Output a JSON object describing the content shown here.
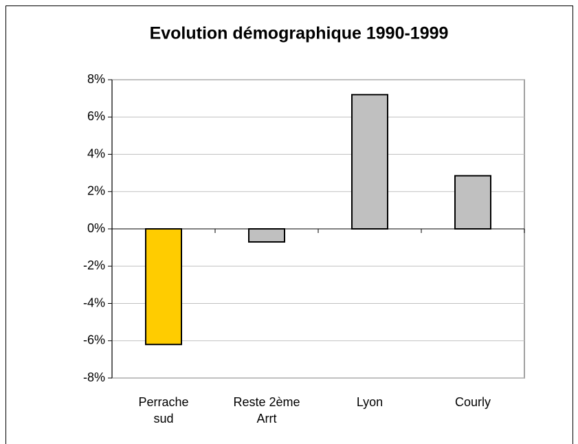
{
  "chart_data": {
    "type": "bar",
    "title": "Evolution démographique 1990-1999",
    "categories": [
      "Perrache sud",
      "Reste 2ème Arrt",
      "Lyon",
      "Courly"
    ],
    "values": [
      -6.2,
      -0.7,
      7.2,
      2.85
    ],
    "colors": [
      "#ffcc00",
      "#c0c0c0",
      "#c0c0c0",
      "#c0c0c0"
    ],
    "ylim": [
      -8,
      8
    ],
    "yticks": [
      {
        "value": -8,
        "label": "-8%"
      },
      {
        "value": -6,
        "label": "-6%"
      },
      {
        "value": -4,
        "label": "-4%"
      },
      {
        "value": -2,
        "label": "-2%"
      },
      {
        "value": 0,
        "label": "0%"
      },
      {
        "value": 2,
        "label": "2%"
      },
      {
        "value": 4,
        "label": "4%"
      },
      {
        "value": 6,
        "label": "6%"
      },
      {
        "value": 8,
        "label": "8%"
      }
    ],
    "grid": true
  }
}
